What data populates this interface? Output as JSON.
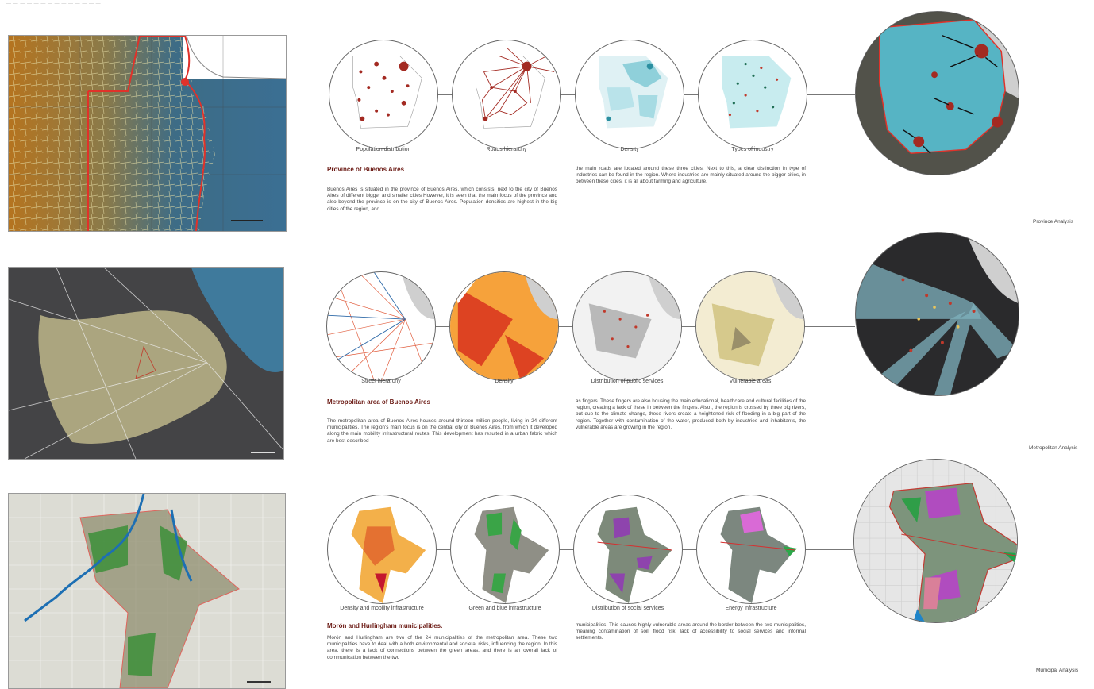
{
  "rows": [
    {
      "captions": [
        "Population distribution",
        "Roads hierarchy",
        "Density",
        "Types of industry"
      ],
      "heading": "Province of Buenos Aires",
      "para1": "Buenos Aires is situated in the province of Buenos Aires, which consists, next to the city of Buenos Aires of different bigger and smaller cities However, it is seen that the main focus of the province and also beyond the province is on the city of Buenos Aires. Population densities are highest in the big cities of the region, and",
      "para2": "the main roads are located around these three cities. Next to this, a clear distinction in type of industries can be found in the region. Where industries are mainly situated around the bigger cities, in between these cities, it is all about farming and agriculture.",
      "analysis": "Province Analysis"
    },
    {
      "captions": [
        "Street hierarchy",
        "Density",
        "Distribution of public services",
        "Vulnerable areas"
      ],
      "heading": "Metropolitan area of Buenos Aires",
      "para1": "The metropolitan area of Buenos Aires houses around thirteen million people, living in 24 different municipalities. The region's main focus is on the central city of Buenos Aires, from which it developed along the main mobility infrastructural routes. This development has resulted in a urban fabric which are best described",
      "para2": "as fingers. These fingers are also housing the main educational, healthcare and cultural facilities of the region, creating a lack of these in between the fingers. Also , the region is crossed by three big rivers, but due to the climate change, these rivers create a heightened risk of flooding in a big part of the region. Together with contamination of the water, produced both by industries and inhabitants, the vulnerable areas are growing in the region.",
      "analysis": "Metropolitan Analysis"
    },
    {
      "captions": [
        "Density and mobility infrastructure",
        "Green and blue infrastructure",
        "Distribution of social services",
        "Energy infrastructure"
      ],
      "heading": "Morón and Hurlingham municipalities.",
      "para1": "Morón and Hurlingham are two of the 24 municipalities of the metropolitan area. These two municipalities have to deal with a both environmental and societal risks, influencing the region. In this area, there is a lack of connections between the green areas, and there is an overall lack of communication between the two",
      "para2": "municipalities. This causes highly vulnerable areas around the border between the two municipalities, meaning contamination of soil, flood risk, lack of accessibility to social services and informal settlements.",
      "analysis": "Municipal Analysis"
    }
  ],
  "colors": {
    "heading": "#6b1a14",
    "boundary": "#e0322a",
    "water": "#3e7c9a",
    "teal": "#6cc3cf",
    "urban": "#d8cf9a"
  },
  "icons": [
    "scale-bar-icon",
    "north-arrow-icon"
  ]
}
